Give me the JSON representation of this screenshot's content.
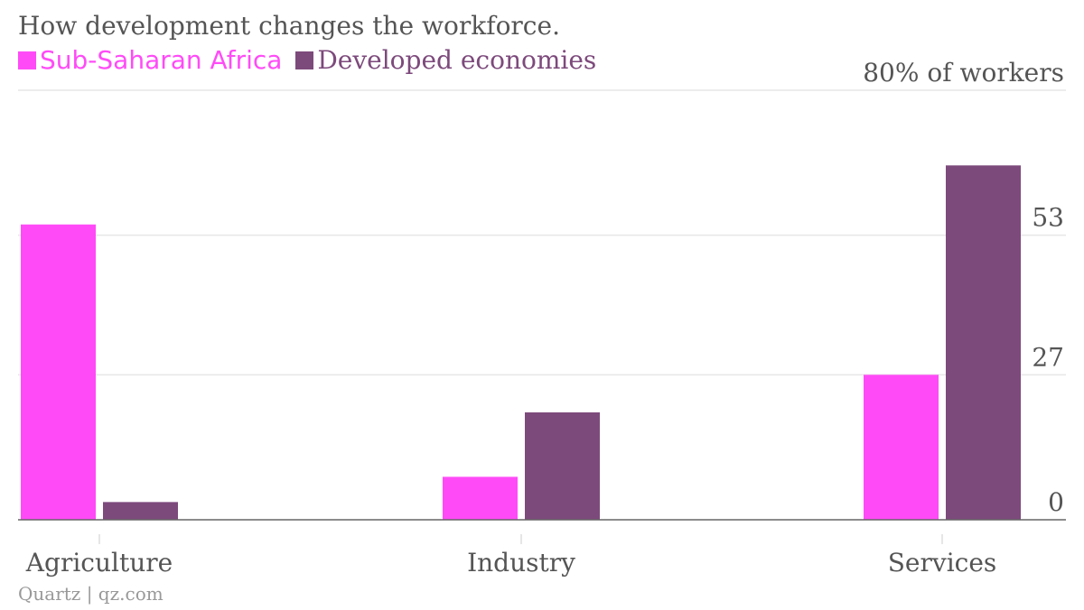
{
  "title": "How development changes the workforce.",
  "source": "Quartz | qz.com",
  "colors": {
    "sub_saharan_africa": "#ff4bf7",
    "developed_economies": "#7d4a7c",
    "axis": "#666666",
    "grid": "#e6e6e6",
    "text": "#555555",
    "source": "#999999"
  },
  "chart_data": {
    "type": "bar",
    "title": "How development changes the workforce.",
    "categories": [
      "Agriculture",
      "Industry",
      "Services"
    ],
    "series": [
      {
        "name": "Sub-Saharan Africa",
        "values": [
          55,
          8,
          27
        ]
      },
      {
        "name": "Developed economies",
        "values": [
          3.3,
          20,
          66
        ]
      }
    ],
    "ylabel": "% of workers",
    "ylim": [
      0,
      80
    ],
    "yticks": [
      0,
      27,
      53,
      80
    ],
    "ytick_labels": [
      "0",
      "27",
      "53",
      "80% of workers"
    ],
    "grid": true,
    "legend_position": "top-left",
    "y_axis_side": "right"
  }
}
